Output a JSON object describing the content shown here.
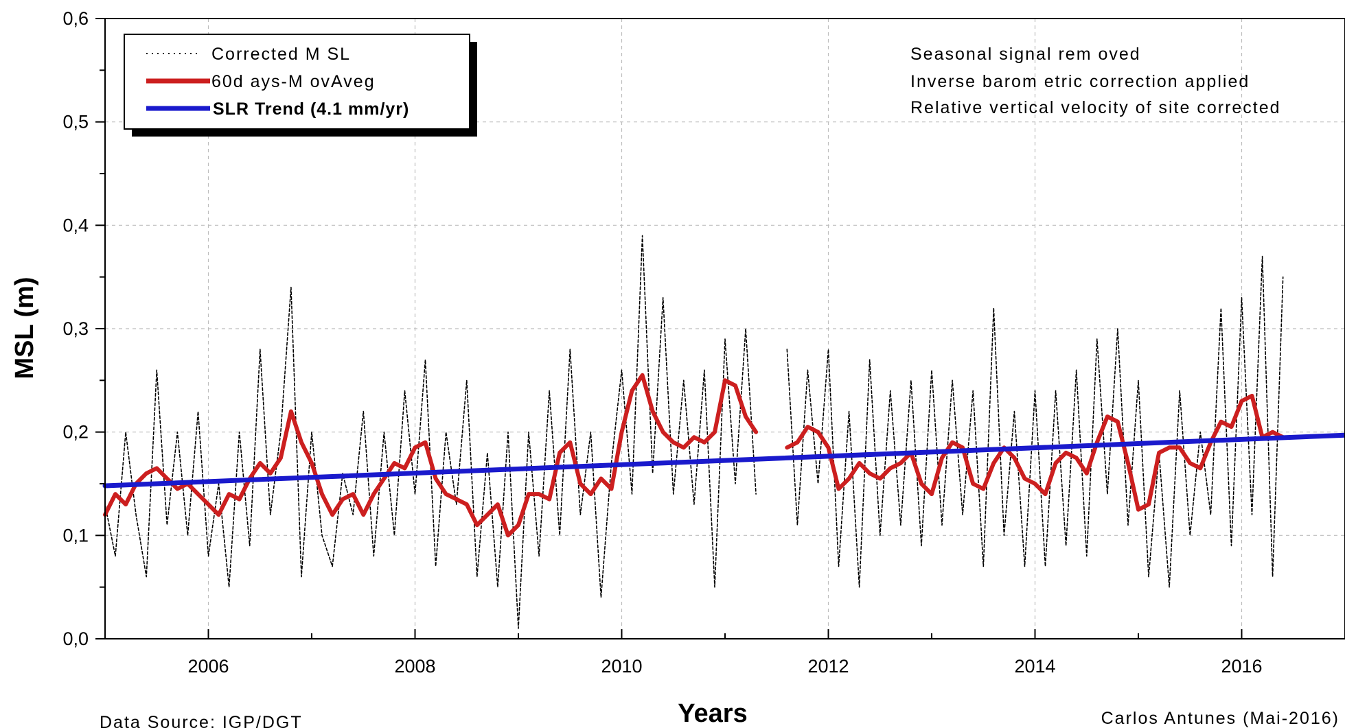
{
  "chart_data": {
    "type": "line",
    "xlabel": "Years",
    "ylabel": "MSL (m)",
    "xlim": [
      2005.0,
      2017.0
    ],
    "ylim": [
      0.0,
      0.6
    ],
    "x_ticks": [
      2006,
      2008,
      2010,
      2012,
      2014,
      2016
    ],
    "x_tick_labels": [
      "2006",
      "2008",
      "2010",
      "2012",
      "2014",
      "2016"
    ],
    "y_ticks": [
      0.0,
      0.1,
      0.2,
      0.3,
      0.4,
      0.5,
      0.6
    ],
    "y_tick_labels": [
      "0,0",
      "0,1",
      "0,2",
      "0,3",
      "0,4",
      "0,5",
      "0,6"
    ],
    "grid": true,
    "legend": {
      "placement": "top-left",
      "entries": [
        "Corrected M SL",
        "60d ays-M ovAveg",
        "SLR Trend (4.1 mm/yr)"
      ]
    },
    "annotations": [
      "Seasonal signal rem oved",
      "Inverse barom etric correction applied",
      "Relative vertical velocity of site corrected"
    ],
    "source_note": "Data Source: IGP/DGT",
    "credit": "Carlos Antunes (Mai-2016)",
    "series": [
      {
        "name": "Corrected M SL",
        "color": "#000000",
        "style": "dotted",
        "gap": [
          2011.35,
          2011.6
        ],
        "x": [
          2005.0,
          2005.1,
          2005.2,
          2005.3,
          2005.4,
          2005.5,
          2005.6,
          2005.7,
          2005.8,
          2005.9,
          2006.0,
          2006.1,
          2006.2,
          2006.3,
          2006.4,
          2006.5,
          2006.6,
          2006.7,
          2006.8,
          2006.9,
          2007.0,
          2007.1,
          2007.2,
          2007.3,
          2007.4,
          2007.5,
          2007.6,
          2007.7,
          2007.8,
          2007.9,
          2008.0,
          2008.1,
          2008.2,
          2008.3,
          2008.4,
          2008.5,
          2008.6,
          2008.7,
          2008.8,
          2008.9,
          2009.0,
          2009.1,
          2009.2,
          2009.3,
          2009.4,
          2009.5,
          2009.6,
          2009.7,
          2009.8,
          2009.9,
          2010.0,
          2010.1,
          2010.2,
          2010.3,
          2010.4,
          2010.5,
          2010.6,
          2010.7,
          2010.8,
          2010.9,
          2011.0,
          2011.1,
          2011.2,
          2011.3,
          2011.6,
          2011.7,
          2011.8,
          2011.9,
          2012.0,
          2012.1,
          2012.2,
          2012.3,
          2012.4,
          2012.5,
          2012.6,
          2012.7,
          2012.8,
          2012.9,
          2013.0,
          2013.1,
          2013.2,
          2013.3,
          2013.4,
          2013.5,
          2013.6,
          2013.7,
          2013.8,
          2013.9,
          2014.0,
          2014.1,
          2014.2,
          2014.3,
          2014.4,
          2014.5,
          2014.6,
          2014.7,
          2014.8,
          2014.9,
          2015.0,
          2015.1,
          2015.2,
          2015.3,
          2015.4,
          2015.5,
          2015.6,
          2015.7,
          2015.8,
          2015.9,
          2016.0,
          2016.1,
          2016.2,
          2016.3,
          2016.4
        ],
        "y": [
          0.13,
          0.08,
          0.2,
          0.12,
          0.06,
          0.26,
          0.11,
          0.2,
          0.1,
          0.22,
          0.08,
          0.15,
          0.05,
          0.2,
          0.09,
          0.28,
          0.12,
          0.2,
          0.34,
          0.06,
          0.2,
          0.1,
          0.07,
          0.16,
          0.12,
          0.22,
          0.08,
          0.2,
          0.1,
          0.24,
          0.14,
          0.27,
          0.07,
          0.2,
          0.13,
          0.25,
          0.06,
          0.18,
          0.05,
          0.2,
          0.01,
          0.2,
          0.08,
          0.24,
          0.1,
          0.28,
          0.12,
          0.2,
          0.04,
          0.17,
          0.26,
          0.14,
          0.39,
          0.16,
          0.33,
          0.14,
          0.25,
          0.13,
          0.26,
          0.05,
          0.29,
          0.15,
          0.3,
          0.14,
          0.28,
          0.11,
          0.26,
          0.15,
          0.28,
          0.07,
          0.22,
          0.05,
          0.27,
          0.1,
          0.24,
          0.11,
          0.25,
          0.09,
          0.26,
          0.11,
          0.25,
          0.12,
          0.24,
          0.07,
          0.32,
          0.1,
          0.22,
          0.07,
          0.24,
          0.07,
          0.24,
          0.09,
          0.26,
          0.08,
          0.29,
          0.14,
          0.3,
          0.11,
          0.25,
          0.06,
          0.18,
          0.05,
          0.24,
          0.1,
          0.2,
          0.12,
          0.32,
          0.09,
          0.33,
          0.12,
          0.37,
          0.06,
          0.35
        ]
      },
      {
        "name": "60d ays-M ovAveg",
        "color": "#cc1f1f",
        "style": "solid",
        "gap": [
          2011.35,
          2011.6
        ],
        "x": [
          2005.0,
          2005.1,
          2005.2,
          2005.3,
          2005.4,
          2005.5,
          2005.6,
          2005.7,
          2005.8,
          2005.9,
          2006.0,
          2006.1,
          2006.2,
          2006.3,
          2006.4,
          2006.5,
          2006.6,
          2006.7,
          2006.8,
          2006.9,
          2007.0,
          2007.1,
          2007.2,
          2007.3,
          2007.4,
          2007.5,
          2007.6,
          2007.7,
          2007.8,
          2007.9,
          2008.0,
          2008.1,
          2008.2,
          2008.3,
          2008.4,
          2008.5,
          2008.6,
          2008.7,
          2008.8,
          2008.9,
          2009.0,
          2009.1,
          2009.2,
          2009.3,
          2009.4,
          2009.5,
          2009.6,
          2009.7,
          2009.8,
          2009.9,
          2010.0,
          2010.1,
          2010.2,
          2010.3,
          2010.4,
          2010.5,
          2010.6,
          2010.7,
          2010.8,
          2010.9,
          2011.0,
          2011.1,
          2011.2,
          2011.3,
          2011.6,
          2011.7,
          2011.8,
          2011.9,
          2012.0,
          2012.1,
          2012.2,
          2012.3,
          2012.4,
          2012.5,
          2012.6,
          2012.7,
          2012.8,
          2012.9,
          2013.0,
          2013.1,
          2013.2,
          2013.3,
          2013.4,
          2013.5,
          2013.6,
          2013.7,
          2013.8,
          2013.9,
          2014.0,
          2014.1,
          2014.2,
          2014.3,
          2014.4,
          2014.5,
          2014.6,
          2014.7,
          2014.8,
          2014.9,
          2015.0,
          2015.1,
          2015.2,
          2015.3,
          2015.4,
          2015.5,
          2015.6,
          2015.7,
          2015.8,
          2015.9,
          2016.0,
          2016.1,
          2016.2,
          2016.3,
          2016.4
        ],
        "y": [
          0.12,
          0.14,
          0.13,
          0.15,
          0.16,
          0.165,
          0.155,
          0.145,
          0.15,
          0.14,
          0.13,
          0.12,
          0.14,
          0.135,
          0.155,
          0.17,
          0.16,
          0.175,
          0.22,
          0.19,
          0.17,
          0.14,
          0.12,
          0.135,
          0.14,
          0.12,
          0.14,
          0.155,
          0.17,
          0.165,
          0.185,
          0.19,
          0.155,
          0.14,
          0.135,
          0.13,
          0.11,
          0.12,
          0.13,
          0.1,
          0.11,
          0.14,
          0.14,
          0.135,
          0.18,
          0.19,
          0.15,
          0.14,
          0.155,
          0.145,
          0.2,
          0.24,
          0.255,
          0.22,
          0.2,
          0.19,
          0.185,
          0.195,
          0.19,
          0.2,
          0.25,
          0.245,
          0.215,
          0.2,
          0.185,
          0.19,
          0.205,
          0.2,
          0.185,
          0.145,
          0.155,
          0.17,
          0.16,
          0.155,
          0.165,
          0.17,
          0.18,
          0.15,
          0.14,
          0.175,
          0.19,
          0.185,
          0.15,
          0.145,
          0.17,
          0.185,
          0.175,
          0.155,
          0.15,
          0.14,
          0.17,
          0.18,
          0.175,
          0.16,
          0.19,
          0.215,
          0.21,
          0.17,
          0.125,
          0.13,
          0.18,
          0.185,
          0.185,
          0.17,
          0.165,
          0.19,
          0.21,
          0.205,
          0.23,
          0.235,
          0.195,
          0.2,
          0.195
        ]
      },
      {
        "name": "SLR Trend (4.1 mm/yr)",
        "color": "#1a1acc",
        "style": "solid",
        "x": [
          2005.0,
          2017.0
        ],
        "y": [
          0.148,
          0.197
        ]
      }
    ]
  }
}
